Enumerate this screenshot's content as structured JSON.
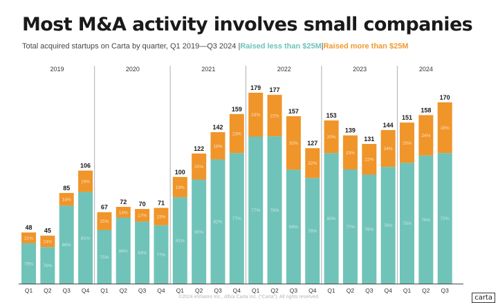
{
  "title": "Most M&A activity involves small companies",
  "subtitle": {
    "text": "Total acquired startups on Carta by quarter, Q1 2019—Q3 2024",
    "sep1": "|",
    "small_label": "Raised less than $25M",
    "sep2": "|",
    "large_label": "Raised more than $25M"
  },
  "footer": "©2024 eShares Inc., d/b/a Carta Inc. (“Carta”). All rights reserved.",
  "logo": "carta",
  "colors": {
    "small": "#70c3b8",
    "large": "#f0952a",
    "total_label": "#1a1a1a",
    "axis": "#444444"
  },
  "chart_data": {
    "type": "bar",
    "stacked": true,
    "years": [
      "2019",
      "2020",
      "2021",
      "2022",
      "2023",
      "2024"
    ],
    "quarters": [
      "Q1",
      "Q2",
      "Q3",
      "Q4"
    ],
    "categories": [
      "2019 Q1",
      "2019 Q2",
      "2019 Q3",
      "2019 Q4",
      "2020 Q1",
      "2020 Q2",
      "2020 Q3",
      "2020 Q4",
      "2021 Q1",
      "2021 Q2",
      "2021 Q3",
      "2021 Q4",
      "2022 Q1",
      "2022 Q2",
      "2022 Q3",
      "2022 Q4",
      "2023 Q1",
      "2023 Q2",
      "2023 Q3",
      "2023 Q4",
      "2024 Q1",
      "2024 Q2",
      "2024 Q3"
    ],
    "totals": [
      48,
      45,
      85,
      106,
      67,
      72,
      70,
      71,
      100,
      122,
      142,
      159,
      179,
      177,
      157,
      127,
      153,
      139,
      131,
      144,
      151,
      158,
      170
    ],
    "series": [
      {
        "name": "Raised less than $25M",
        "pct_labels": [
          "79%",
          "76%",
          "86%",
          "81%",
          "75%",
          "86%",
          "83%",
          "77%",
          "81%",
          "80%",
          "82%",
          "77%",
          "77%",
          "78%",
          "68%",
          "78%",
          "80%",
          "77%",
          "78%",
          "76%",
          "75%",
          "76%",
          "72%"
        ]
      },
      {
        "name": "Raised more than $25M",
        "pct_labels": [
          "21%",
          "24%",
          "14%",
          "19%",
          "25%",
          "14%",
          "17%",
          "23%",
          "19%",
          "20%",
          "18%",
          "23%",
          "23%",
          "22%",
          "32%",
          "22%",
          "20%",
          "23%",
          "22%",
          "24%",
          "25%",
          "24%",
          "28%"
        ]
      }
    ],
    "ylim": [
      0,
      179
    ],
    "grid": false,
    "legend": "in subtitle"
  }
}
